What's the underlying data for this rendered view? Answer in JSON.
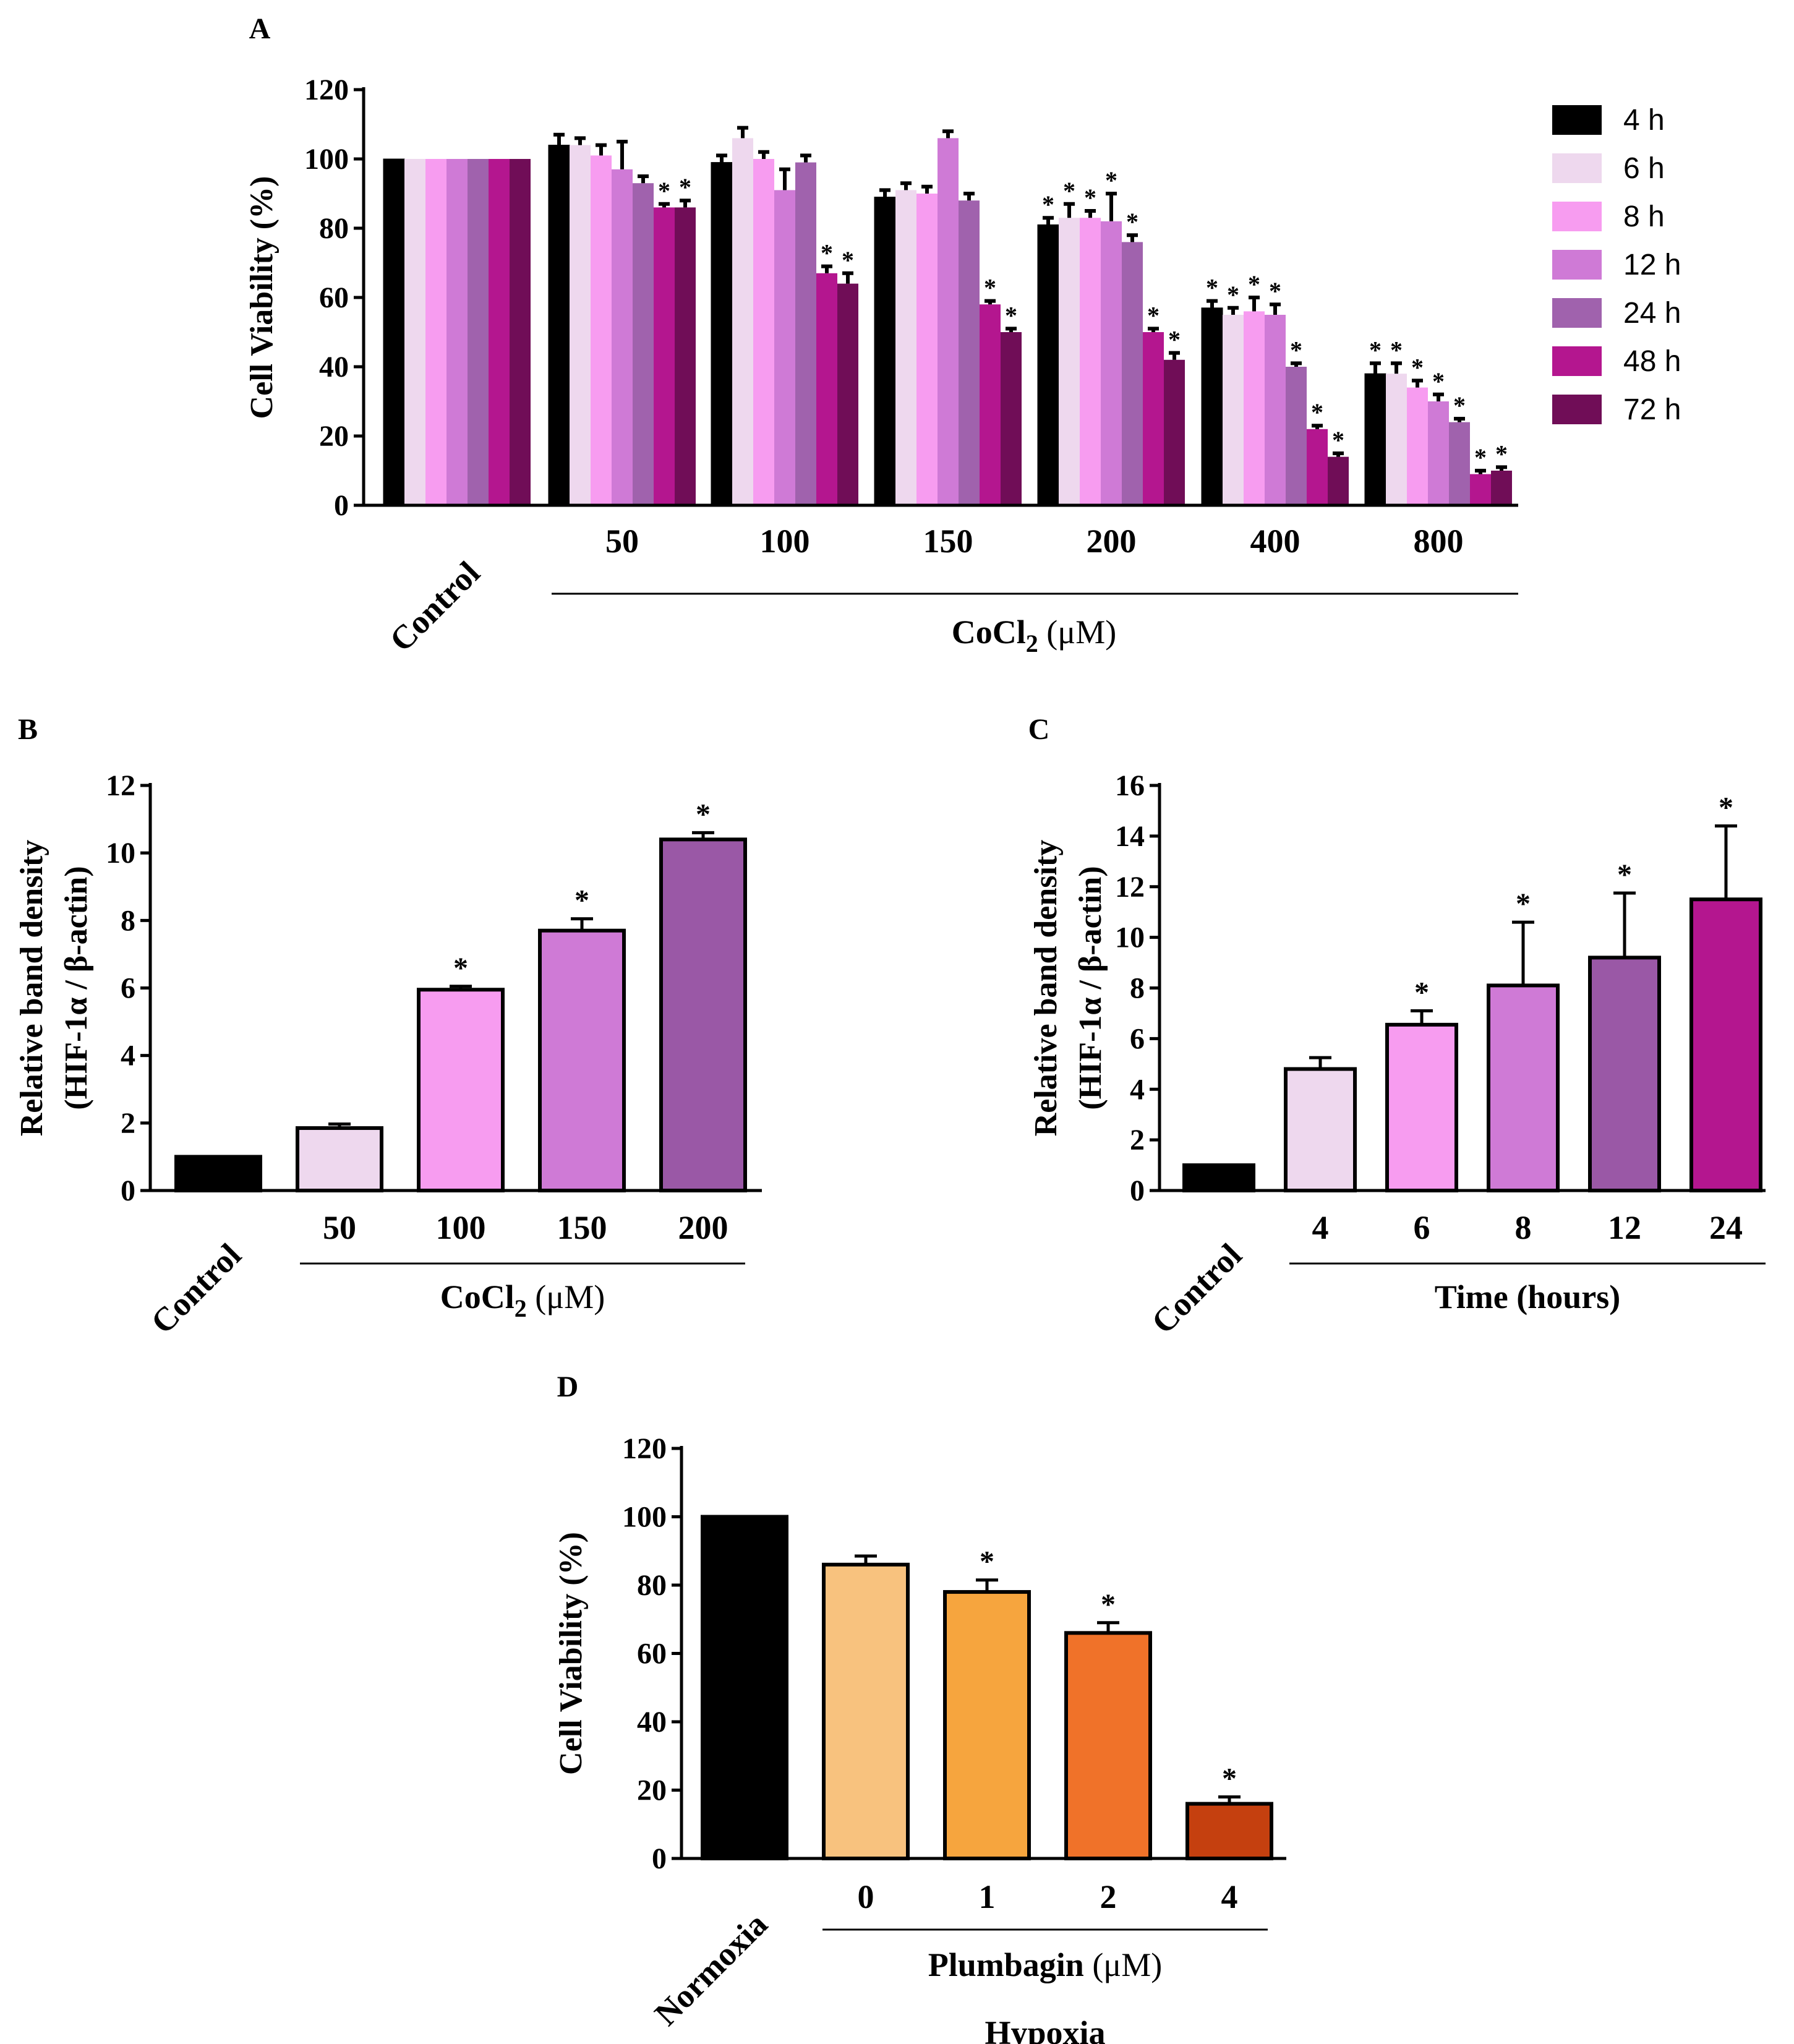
{
  "chart_data": [
    {
      "panel": "A",
      "type": "bar",
      "ylabel": "Cell Viability (%)",
      "xgroup_label": "CoCl2 (μM)",
      "xgroup_label_main": "CoCl",
      "xgroup_label_sub": "2",
      "xgroup_label_unit": " (μM)",
      "ylim": [
        0,
        120
      ],
      "yticks": [
        "0",
        "20",
        "40",
        "60",
        "80",
        "100",
        "120"
      ],
      "categories": [
        "Control",
        "50",
        "100",
        "150",
        "200",
        "400",
        "800"
      ],
      "series": [
        {
          "name": "4 h",
          "color": "#000000",
          "values": [
            100,
            104,
            99,
            89,
            81,
            57,
            38
          ],
          "errors": [
            0,
            3,
            2,
            2,
            2,
            2,
            3
          ],
          "sig": [
            false,
            false,
            false,
            false,
            true,
            true,
            true
          ]
        },
        {
          "name": "6 h",
          "color": "#eed8ee",
          "values": [
            100,
            104,
            106,
            91,
            83,
            55,
            38
          ],
          "errors": [
            0,
            2,
            3,
            2,
            4,
            2,
            3
          ],
          "sig": [
            false,
            false,
            false,
            false,
            true,
            true,
            true
          ]
        },
        {
          "name": "8 h",
          "color": "#f79cf0",
          "values": [
            100,
            101,
            100,
            90,
            83,
            56,
            34
          ],
          "errors": [
            0,
            3,
            2,
            2,
            2,
            4,
            2
          ],
          "sig": [
            false,
            false,
            false,
            false,
            true,
            true,
            true
          ]
        },
        {
          "name": "12 h",
          "color": "#cf7ad6",
          "values": [
            100,
            97,
            91,
            106,
            82,
            55,
            30
          ],
          "errors": [
            0,
            8,
            6,
            2,
            8,
            3,
            2
          ],
          "sig": [
            false,
            false,
            false,
            false,
            true,
            true,
            true
          ]
        },
        {
          "name": "24 h",
          "color": "#a062ad",
          "values": [
            100,
            93,
            99,
            88,
            76,
            40,
            24
          ],
          "errors": [
            0,
            2,
            2,
            2,
            2,
            1,
            1
          ],
          "sig": [
            false,
            false,
            false,
            false,
            true,
            true,
            true
          ]
        },
        {
          "name": "48 h",
          "color": "#b4168f",
          "values": [
            100,
            86,
            67,
            58,
            50,
            22,
            9
          ],
          "errors": [
            0,
            1,
            2,
            1,
            1,
            1,
            1
          ],
          "sig": [
            false,
            true,
            true,
            true,
            true,
            true,
            true
          ]
        },
        {
          "name": "72 h",
          "color": "#700d57",
          "values": [
            100,
            86,
            64,
            50,
            42,
            14,
            10
          ],
          "errors": [
            0,
            2,
            3,
            1,
            2,
            1,
            1
          ],
          "sig": [
            false,
            true,
            true,
            true,
            true,
            true,
            true
          ]
        }
      ],
      "legend": [
        "4 h",
        "6 h",
        "8 h",
        "12 h",
        "24 h",
        "48 h",
        "72 h"
      ],
      "legend_position": "right"
    },
    {
      "panel": "B",
      "type": "bar",
      "ylabel_line1": "Relative band density",
      "ylabel_line2": "(HIF-1α / β-actin)",
      "xgroup_label_main": "CoCl",
      "xgroup_label_sub": "2",
      "xgroup_label_unit": " (μM)",
      "ylim": [
        0,
        12
      ],
      "yticks": [
        "0",
        "2",
        "4",
        "6",
        "8",
        "10",
        "12"
      ],
      "categories": [
        "Control",
        "50",
        "100",
        "150",
        "200"
      ],
      "values": [
        1.0,
        1.85,
        5.95,
        7.7,
        10.4
      ],
      "errors": [
        0,
        0.12,
        0.1,
        0.35,
        0.2
      ],
      "colors": [
        "#000000",
        "#eed8ee",
        "#f79cf0",
        "#cf7ad6",
        "#9a58a6"
      ],
      "sig": [
        false,
        false,
        true,
        true,
        true
      ]
    },
    {
      "panel": "C",
      "type": "bar",
      "ylabel_line1": "Relative band density",
      "ylabel_line2": "(HIF-1α / β-actin)",
      "xgroup_label": "Time (hours)",
      "ylim": [
        0,
        16
      ],
      "yticks": [
        "0",
        "2",
        "4",
        "6",
        "8",
        "10",
        "12",
        "14",
        "16"
      ],
      "categories": [
        "Control",
        "4",
        "6",
        "8",
        "12",
        "24"
      ],
      "values": [
        1.0,
        4.8,
        6.55,
        8.1,
        9.2,
        11.5
      ],
      "errors": [
        0,
        0.45,
        0.55,
        2.5,
        2.55,
        2.9
      ],
      "colors": [
        "#000000",
        "#eed8ee",
        "#f79cf0",
        "#cf7ad6",
        "#9a58a6",
        "#b4168f"
      ],
      "sig": [
        false,
        false,
        true,
        true,
        true,
        true
      ]
    },
    {
      "panel": "D",
      "type": "bar",
      "ylabel": "Cell Viability (%)",
      "xgroup_label_main": "Plumbagin",
      "xgroup_label_unit": " (μM)",
      "xgroup_label2": "Hypoxia",
      "ylim": [
        0,
        120
      ],
      "yticks": [
        "0",
        "20",
        "40",
        "60",
        "80",
        "100",
        "120"
      ],
      "categories": [
        "Normoxia",
        "0",
        "1",
        "2",
        "4"
      ],
      "values": [
        100,
        86,
        78,
        66,
        16
      ],
      "errors": [
        0,
        2.5,
        3.5,
        3,
        2
      ],
      "colors": [
        "#000000",
        "#f8c27e",
        "#f6a53e",
        "#f07229",
        "#c5400f"
      ],
      "sig": [
        false,
        false,
        true,
        true,
        true
      ]
    }
  ],
  "sig_marker": "*"
}
